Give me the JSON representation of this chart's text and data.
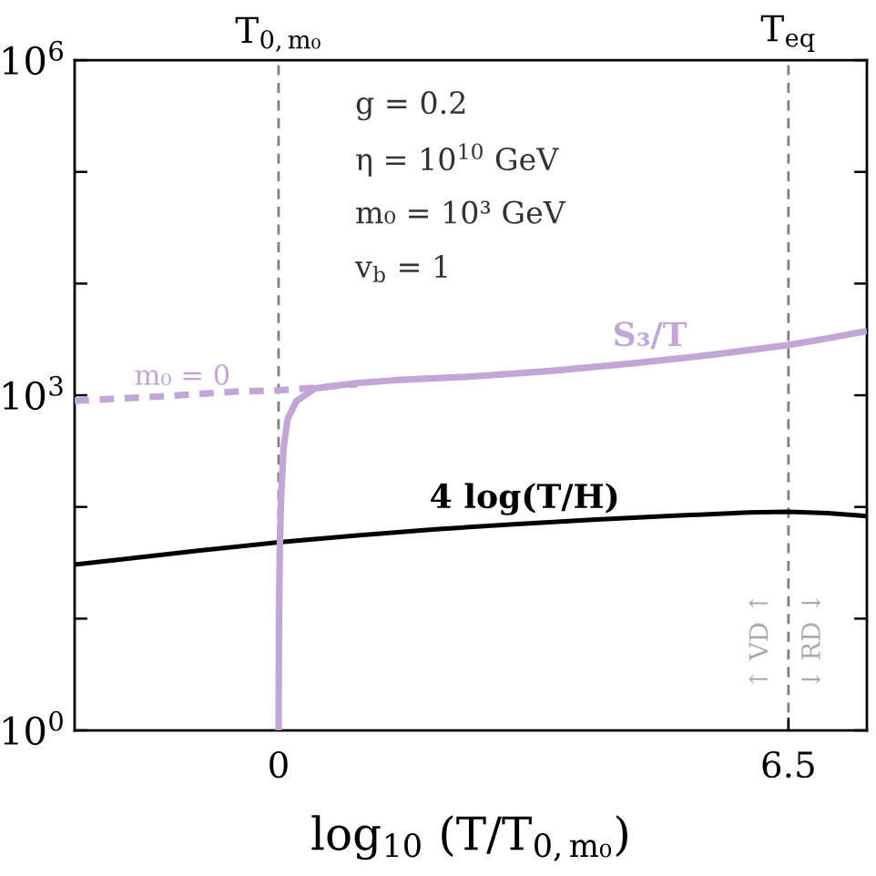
{
  "chart_data": {
    "type": "line",
    "log": "y",
    "marker": "none",
    "line_style": "solid",
    "grid": false,
    "legend": false,
    "xlabel": "log$_{10}$ (T/T$_{0,m₀}$)",
    "xlim": [
      -2.6,
      7.5
    ],
    "xticks": [
      0,
      6.5
    ],
    "ylim": [
      1,
      1000000
    ],
    "yticks": [
      {
        "value": 1,
        "label": "10$^{0}$"
      },
      {
        "value": 10,
        "label": null
      },
      {
        "value": 100,
        "label": null
      },
      {
        "value": 1000,
        "label": "10$^{3}$"
      },
      {
        "value": 10000,
        "label": null
      },
      {
        "value": 100000,
        "label": null
      },
      {
        "value": 1000000,
        "label": "10$^{6}$"
      }
    ],
    "series": [
      {
        "name": "4 log(T/H)",
        "color": "#000000",
        "x": [
          -2.6,
          -2,
          -1,
          0,
          1,
          2,
          3,
          4,
          5,
          6,
          6.5,
          7,
          7.5
        ],
        "values": [
          30.5,
          33.9,
          40.7,
          48.3,
          55.6,
          63.1,
          70.0,
          76.7,
          83.2,
          89.1,
          90.6,
          88.1,
          83.0
        ]
      },
      {
        "name": "m₀ = 0",
        "color": "#c3a6d8",
        "line_style": "dashed",
        "x": [
          -2.6,
          -1.5,
          -0.54,
          0,
          0.5,
          1.0
        ],
        "values": [
          891,
          977,
          1079,
          1107,
          1175,
          1259
        ]
      },
      {
        "name": "S₃/T",
        "color": "#c3a6d8",
        "x": [
          0,
          0.005,
          0.015,
          0.03,
          0.062,
          0.116,
          0.23,
          0.46,
          1.0,
          1.5,
          2.48,
          3.5,
          4.5,
          5.5,
          6.5,
          7,
          7.5
        ],
        "values": [
          1,
          10,
          40,
          112,
          331,
          617,
          891,
          1148,
          1288,
          1365,
          1472,
          1660,
          1928,
          2291,
          2818,
          3236,
          3758
        ]
      }
    ],
    "ref_lines": [
      {
        "axis": "x",
        "value": 0,
        "label": "T$_{0,m₀}$",
        "color": "#808080",
        "line_style": "dashed"
      },
      {
        "axis": "x",
        "value": 6.5,
        "label": "T$_{eq}$",
        "color": "#808080",
        "line_style": "dashed"
      }
    ],
    "annotations": [
      "g = 0.2",
      "η = 10$^{10}$ GeV",
      "m₀ = 10³ GeV",
      "v$_{b}$ = 1",
      "↑ VD ↑",
      "↓ RD ↓"
    ]
  }
}
